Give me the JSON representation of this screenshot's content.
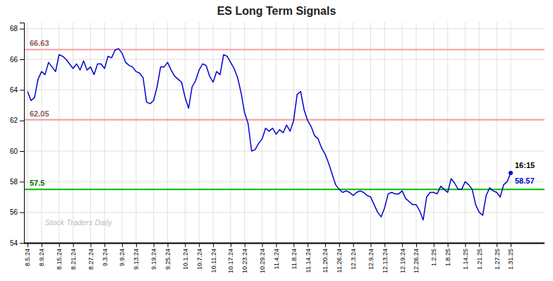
{
  "chart_data": {
    "type": "line",
    "title": "ES Long Term Signals",
    "categories": [
      "8.5.24",
      null,
      null,
      null,
      "8.9.24",
      null,
      null,
      null,
      null,
      "8.15.24",
      null,
      null,
      null,
      "8.21.24",
      null,
      null,
      null,
      null,
      "8.27.24",
      null,
      null,
      null,
      "9.3.24",
      null,
      null,
      null,
      null,
      "9.9.24",
      null,
      null,
      null,
      "9.13.24",
      null,
      null,
      null,
      null,
      "9.19.24",
      null,
      null,
      null,
      "9.25.24",
      null,
      null,
      null,
      null,
      "10.1.24",
      null,
      null,
      null,
      "10.7.24",
      null,
      null,
      null,
      "10.11.24",
      null,
      null,
      null,
      null,
      "10.17.24",
      null,
      null,
      null,
      "10.23.24",
      null,
      null,
      null,
      null,
      "10.29.24",
      null,
      null,
      null,
      "11.4.24",
      null,
      null,
      null,
      null,
      "11.8.24",
      null,
      null,
      null,
      "11.14.24",
      null,
      null,
      null,
      null,
      "11.20.24",
      null,
      null,
      null,
      "11.26.24",
      null,
      null,
      null,
      "12.3.24",
      null,
      null,
      null,
      null,
      "12.9.24",
      null,
      null,
      null,
      "12.13.24",
      null,
      null,
      null,
      null,
      "12.19.24",
      null,
      null,
      null,
      "12.26.24",
      null,
      null,
      null,
      null,
      "1.2.25",
      null,
      null,
      null,
      "1.8.25",
      null,
      null,
      null,
      null,
      "1.14.25",
      null,
      null,
      null,
      "1.21.25",
      null,
      null,
      null,
      null,
      "1.27.25",
      null,
      null,
      null,
      "1.31.25"
    ],
    "values": [
      63.9,
      63.3,
      63.5,
      64.7,
      65.2,
      65.0,
      65.8,
      65.5,
      65.2,
      66.3,
      66.2,
      66.0,
      65.7,
      65.4,
      65.7,
      65.3,
      65.9,
      65.3,
      65.5,
      65.0,
      65.7,
      65.7,
      65.4,
      66.2,
      66.1,
      66.6,
      66.7,
      66.4,
      65.8,
      65.6,
      65.5,
      65.2,
      65.1,
      64.8,
      63.2,
      63.1,
      63.3,
      64.2,
      65.5,
      65.5,
      65.8,
      65.3,
      64.9,
      64.7,
      64.5,
      63.5,
      62.8,
      64.2,
      64.6,
      65.3,
      65.7,
      65.6,
      64.9,
      64.5,
      65.2,
      65.0,
      66.3,
      66.2,
      65.8,
      65.4,
      64.8,
      63.8,
      62.5,
      61.8,
      60.0,
      60.1,
      60.5,
      60.8,
      61.5,
      61.3,
      61.5,
      61.1,
      61.4,
      61.2,
      61.7,
      61.3,
      62.0,
      63.7,
      63.9,
      62.7,
      62.0,
      61.6,
      61.0,
      60.8,
      60.2,
      59.8,
      59.2,
      58.5,
      57.8,
      57.5,
      57.3,
      57.4,
      57.3,
      57.1,
      57.3,
      57.4,
      57.3,
      57.1,
      57.0,
      56.5,
      56.0,
      55.7,
      56.3,
      57.2,
      57.3,
      57.2,
      57.2,
      57.4,
      56.9,
      56.7,
      56.5,
      56.5,
      56.1,
      55.5,
      57.0,
      57.3,
      57.3,
      57.2,
      57.7,
      57.5,
      57.3,
      58.2,
      57.9,
      57.5,
      57.5,
      58.0,
      57.8,
      57.5,
      56.5,
      56.0,
      55.8,
      57.1,
      57.6,
      57.4,
      57.3,
      57.0,
      57.8,
      58.0,
      58.57
    ],
    "color": "#0000cc",
    "ylim": [
      54,
      68.4
    ],
    "yticks": [
      54,
      56,
      58,
      60,
      62,
      64,
      66,
      68
    ],
    "grid": true,
    "reference_lines": [
      {
        "value": 66.63,
        "color": "#f5a0a0",
        "label": "66.63"
      },
      {
        "value": 62.05,
        "color": "#f5a0a0",
        "label": "62.05"
      },
      {
        "value": 57.5,
        "color": "#00bb00",
        "label": "57.5"
      }
    ],
    "annotations": [
      {
        "text": "16:15",
        "color": "#000000"
      },
      {
        "text": "58.57",
        "color": "#0000cc"
      }
    ],
    "watermark": "Stock Traders Daily"
  }
}
